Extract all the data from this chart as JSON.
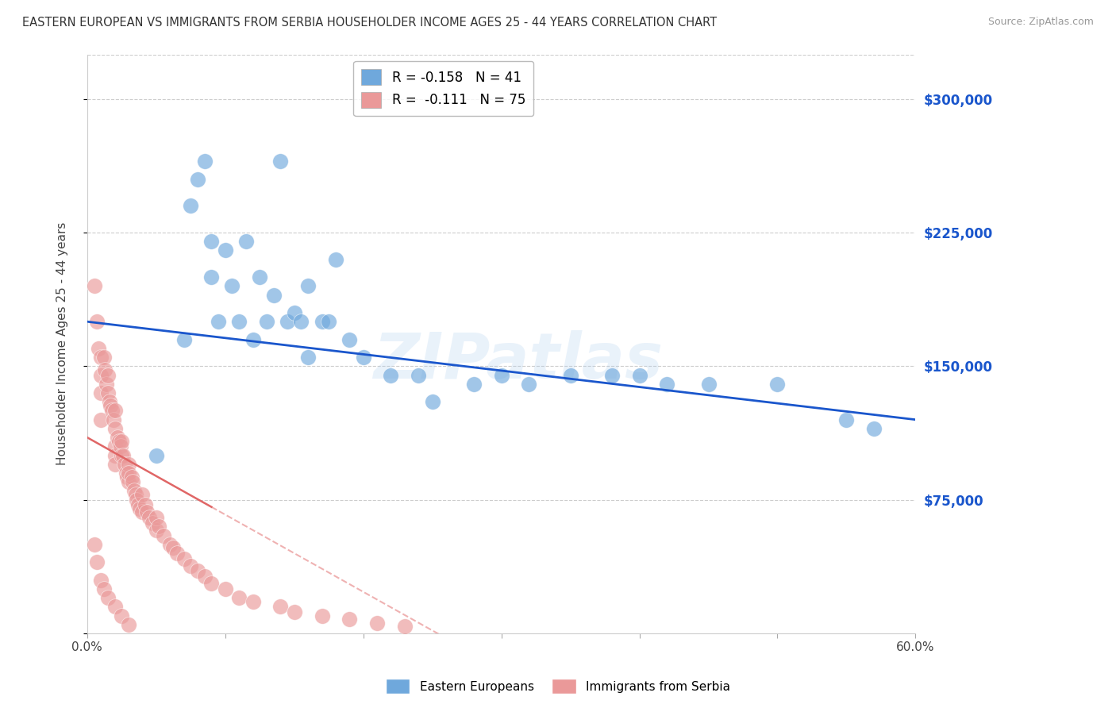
{
  "title": "EASTERN EUROPEAN VS IMMIGRANTS FROM SERBIA HOUSEHOLDER INCOME AGES 25 - 44 YEARS CORRELATION CHART",
  "source": "Source: ZipAtlas.com",
  "ylabel": "Householder Income Ages 25 - 44 years",
  "watermark": "ZIPatlas",
  "xlim": [
    0.0,
    0.6
  ],
  "ylim": [
    0,
    325000
  ],
  "yticks": [
    0,
    75000,
    150000,
    225000,
    300000
  ],
  "xticks": [
    0.0,
    0.1,
    0.2,
    0.3,
    0.4,
    0.5,
    0.6
  ],
  "blue_R": -0.158,
  "blue_N": 41,
  "pink_R": -0.111,
  "pink_N": 75,
  "blue_color": "#6fa8dc",
  "pink_color": "#ea9999",
  "blue_line_color": "#1a56cc",
  "pink_line_color": "#e06666",
  "legend1_label": "Eastern Europeans",
  "legend2_label": "Immigrants from Serbia",
  "blue_x": [
    0.05,
    0.07,
    0.075,
    0.08,
    0.085,
    0.09,
    0.09,
    0.095,
    0.1,
    0.105,
    0.11,
    0.115,
    0.12,
    0.125,
    0.13,
    0.135,
    0.14,
    0.145,
    0.15,
    0.155,
    0.16,
    0.17,
    0.175,
    0.18,
    0.19,
    0.2,
    0.22,
    0.24,
    0.28,
    0.3,
    0.32,
    0.35,
    0.38,
    0.4,
    0.42,
    0.45,
    0.5,
    0.55,
    0.57,
    0.25,
    0.16
  ],
  "blue_y": [
    100000,
    165000,
    240000,
    255000,
    265000,
    200000,
    220000,
    175000,
    215000,
    195000,
    175000,
    220000,
    165000,
    200000,
    175000,
    190000,
    265000,
    175000,
    180000,
    175000,
    195000,
    175000,
    175000,
    210000,
    165000,
    155000,
    145000,
    145000,
    140000,
    145000,
    140000,
    145000,
    145000,
    145000,
    140000,
    140000,
    140000,
    120000,
    115000,
    130000,
    155000
  ],
  "pink_x": [
    0.005,
    0.007,
    0.008,
    0.01,
    0.01,
    0.01,
    0.01,
    0.012,
    0.013,
    0.014,
    0.015,
    0.015,
    0.016,
    0.017,
    0.018,
    0.019,
    0.02,
    0.02,
    0.02,
    0.02,
    0.02,
    0.022,
    0.023,
    0.024,
    0.025,
    0.025,
    0.026,
    0.027,
    0.028,
    0.029,
    0.03,
    0.03,
    0.03,
    0.032,
    0.033,
    0.034,
    0.035,
    0.036,
    0.037,
    0.038,
    0.04,
    0.04,
    0.042,
    0.043,
    0.045,
    0.047,
    0.05,
    0.05,
    0.052,
    0.055,
    0.06,
    0.062,
    0.065,
    0.07,
    0.075,
    0.08,
    0.085,
    0.09,
    0.1,
    0.11,
    0.12,
    0.14,
    0.15,
    0.17,
    0.19,
    0.21,
    0.23,
    0.005,
    0.007,
    0.01,
    0.012,
    0.015,
    0.02,
    0.025,
    0.03
  ],
  "pink_y": [
    195000,
    175000,
    160000,
    155000,
    145000,
    135000,
    120000,
    155000,
    148000,
    140000,
    135000,
    145000,
    130000,
    128000,
    125000,
    120000,
    125000,
    115000,
    105000,
    100000,
    95000,
    110000,
    108000,
    105000,
    100000,
    108000,
    100000,
    95000,
    90000,
    88000,
    85000,
    95000,
    90000,
    88000,
    85000,
    80000,
    78000,
    75000,
    72000,
    70000,
    68000,
    78000,
    72000,
    68000,
    65000,
    62000,
    58000,
    65000,
    60000,
    55000,
    50000,
    48000,
    45000,
    42000,
    38000,
    35000,
    32000,
    28000,
    25000,
    20000,
    18000,
    15000,
    12000,
    10000,
    8000,
    6000,
    4000,
    50000,
    40000,
    30000,
    25000,
    20000,
    15000,
    10000,
    5000
  ]
}
